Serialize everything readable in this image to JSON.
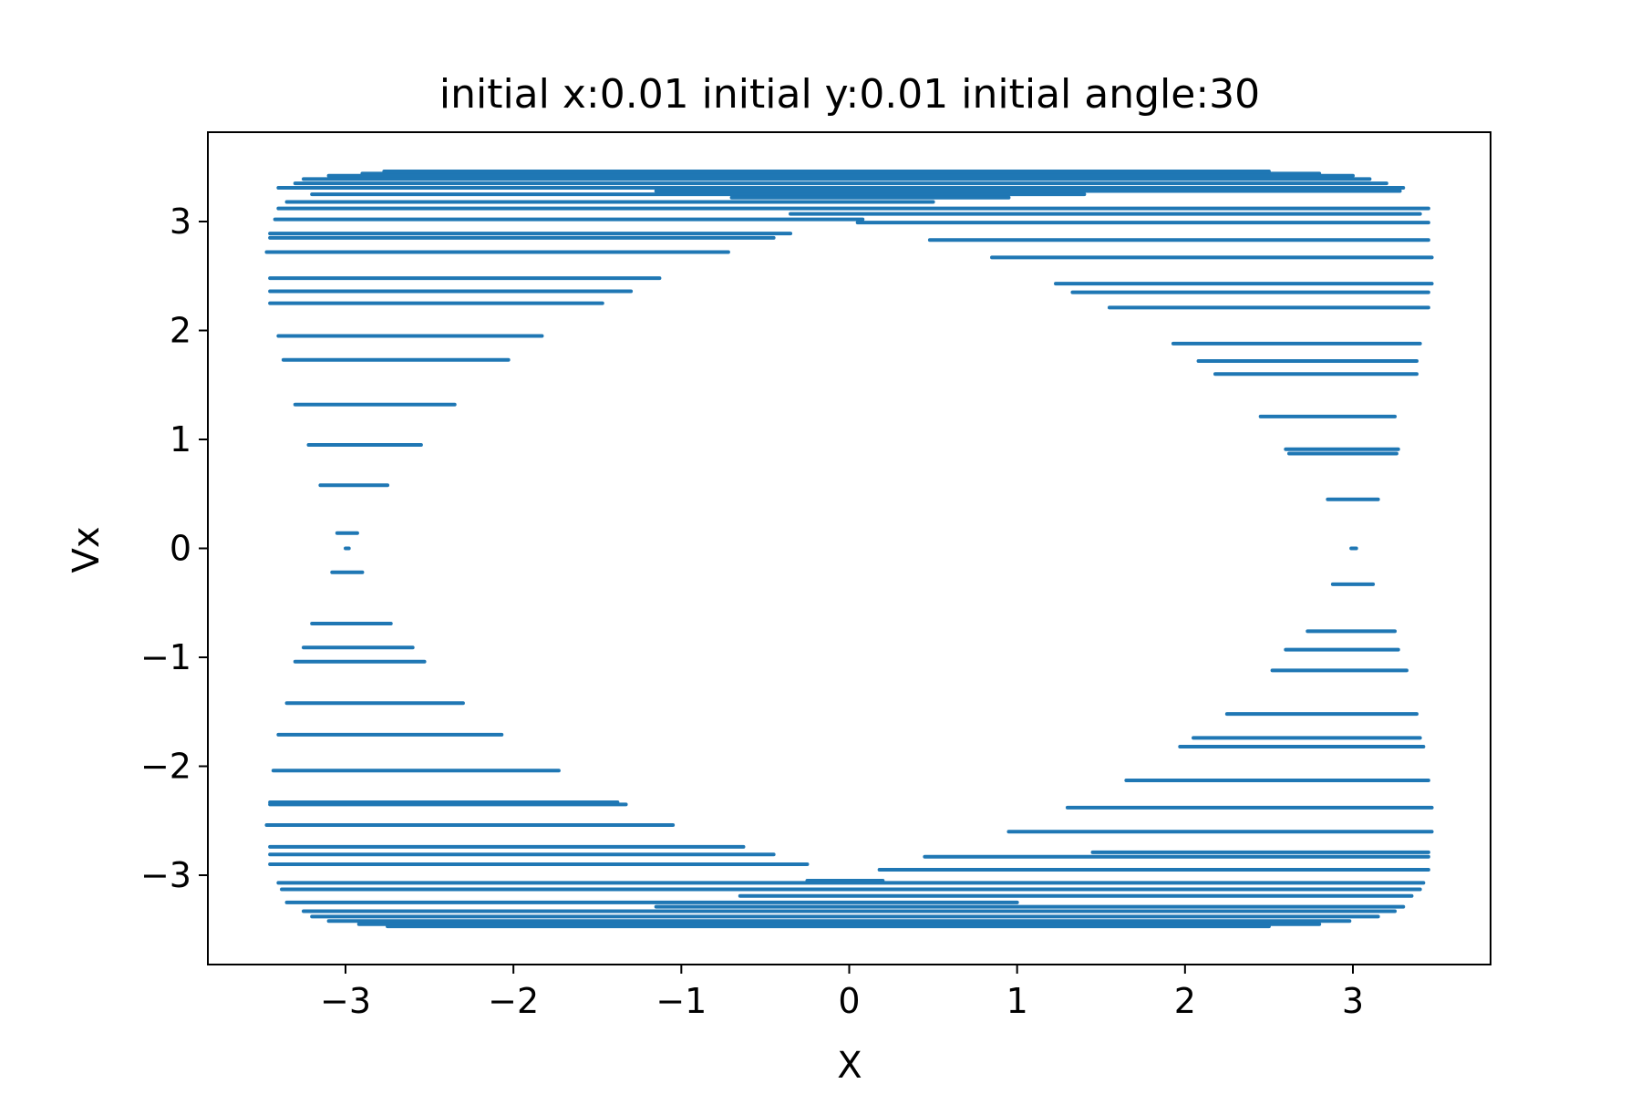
{
  "chart_data": {
    "type": "scatter",
    "title": "initial x:0.01  initial y:0.01 initial angle:30",
    "xlabel": "X",
    "ylabel": "Vx",
    "xlim": [
      -3.82,
      3.82
    ],
    "ylim": [
      -3.82,
      3.82
    ],
    "xticks": [
      -3,
      -2,
      -1,
      0,
      1,
      2,
      3
    ],
    "yticks": [
      -3,
      -2,
      -1,
      0,
      1,
      2,
      3
    ],
    "xtick_labels": [
      "−3",
      "−2",
      "−1",
      "0",
      "1",
      "2",
      "3"
    ],
    "ytick_labels": [
      "−3",
      "−2",
      "−1",
      "0",
      "1",
      "2",
      "3"
    ],
    "grid": false,
    "series": [
      {
        "color": "#1f77b4",
        "segments": [
          {
            "vx": 3.46,
            "x": [
              -2.77,
              2.5
            ]
          },
          {
            "vx": 3.44,
            "x": [
              -2.9,
              2.8
            ]
          },
          {
            "vx": 3.42,
            "x": [
              -3.1,
              3.0
            ]
          },
          {
            "vx": 3.39,
            "x": [
              -3.25,
              3.1
            ]
          },
          {
            "vx": 3.35,
            "x": [
              -3.3,
              3.2
            ]
          },
          {
            "vx": 3.31,
            "x": [
              -3.4,
              3.3
            ]
          },
          {
            "vx": 3.28,
            "x": [
              -1.15,
              3.28
            ]
          },
          {
            "vx": 3.25,
            "x": [
              -3.2,
              1.4
            ]
          },
          {
            "vx": 3.22,
            "x": [
              -0.7,
              0.95
            ]
          },
          {
            "vx": 3.18,
            "x": [
              -3.35,
              0.5
            ]
          },
          {
            "vx": 3.12,
            "x": [
              -3.4,
              3.45
            ]
          },
          {
            "vx": 3.07,
            "x": [
              -0.35,
              3.4
            ]
          },
          {
            "vx": 3.02,
            "x": [
              -3.42,
              0.08
            ]
          },
          {
            "vx": 2.99,
            "x": [
              0.05,
              3.45
            ]
          },
          {
            "vx": 2.89,
            "x": [
              -3.45,
              -0.35
            ]
          },
          {
            "vx": 2.85,
            "x": [
              -3.45,
              -0.45
            ]
          },
          {
            "vx": 2.83,
            "x": [
              0.48,
              3.45
            ]
          },
          {
            "vx": 2.72,
            "x": [
              -3.47,
              -0.72
            ]
          },
          {
            "vx": 2.67,
            "x": [
              0.85,
              3.47
            ]
          },
          {
            "vx": 2.48,
            "x": [
              -3.45,
              -1.13
            ]
          },
          {
            "vx": 2.43,
            "x": [
              1.23,
              3.47
            ]
          },
          {
            "vx": 2.36,
            "x": [
              -3.45,
              -1.3
            ]
          },
          {
            "vx": 2.35,
            "x": [
              1.33,
              3.45
            ]
          },
          {
            "vx": 2.25,
            "x": [
              -3.45,
              -1.47
            ]
          },
          {
            "vx": 2.21,
            "x": [
              1.55,
              3.45
            ]
          },
          {
            "vx": 1.95,
            "x": [
              -3.4,
              -1.83
            ]
          },
          {
            "vx": 1.88,
            "x": [
              1.93,
              3.4
            ]
          },
          {
            "vx": 1.73,
            "x": [
              -3.37,
              -2.03
            ]
          },
          {
            "vx": 1.72,
            "x": [
              2.08,
              3.38
            ]
          },
          {
            "vx": 1.6,
            "x": [
              2.18,
              3.38
            ]
          },
          {
            "vx": 1.32,
            "x": [
              -3.3,
              -2.35
            ]
          },
          {
            "vx": 1.21,
            "x": [
              2.45,
              3.25
            ]
          },
          {
            "vx": 0.95,
            "x": [
              -3.22,
              -2.55
            ]
          },
          {
            "vx": 0.91,
            "x": [
              2.6,
              3.27
            ]
          },
          {
            "vx": 0.87,
            "x": [
              2.62,
              3.26
            ]
          },
          {
            "vx": 0.58,
            "x": [
              -3.15,
              -2.75
            ]
          },
          {
            "vx": 0.45,
            "x": [
              2.85,
              3.15
            ]
          },
          {
            "vx": 0.14,
            "x": [
              -3.05,
              -2.93
            ]
          },
          {
            "vx": 0.0,
            "x": [
              -3.0,
              -2.98
            ]
          },
          {
            "vx": 0.0,
            "x": [
              2.99,
              3.02
            ]
          },
          {
            "vx": -0.22,
            "x": [
              -3.08,
              -2.9
            ]
          },
          {
            "vx": -0.33,
            "x": [
              2.88,
              3.12
            ]
          },
          {
            "vx": -0.69,
            "x": [
              -3.2,
              -2.73
            ]
          },
          {
            "vx": -0.76,
            "x": [
              2.73,
              3.25
            ]
          },
          {
            "vx": -0.91,
            "x": [
              -3.25,
              -2.6
            ]
          },
          {
            "vx": -0.93,
            "x": [
              2.6,
              3.27
            ]
          },
          {
            "vx": -1.04,
            "x": [
              -3.3,
              -2.53
            ]
          },
          {
            "vx": -1.12,
            "x": [
              2.52,
              3.32
            ]
          },
          {
            "vx": -1.42,
            "x": [
              -3.35,
              -2.3
            ]
          },
          {
            "vx": -1.52,
            "x": [
              2.25,
              3.38
            ]
          },
          {
            "vx": -1.71,
            "x": [
              -3.4,
              -2.07
            ]
          },
          {
            "vx": -1.74,
            "x": [
              2.05,
              3.4
            ]
          },
          {
            "vx": -1.82,
            "x": [
              1.97,
              3.42
            ]
          },
          {
            "vx": -2.04,
            "x": [
              -3.43,
              -1.73
            ]
          },
          {
            "vx": -2.13,
            "x": [
              1.65,
              3.45
            ]
          },
          {
            "vx": -2.33,
            "x": [
              -3.45,
              -1.38
            ]
          },
          {
            "vx": -2.35,
            "x": [
              -3.45,
              -1.33
            ]
          },
          {
            "vx": -2.38,
            "x": [
              1.3,
              3.47
            ]
          },
          {
            "vx": -2.54,
            "x": [
              -3.47,
              -1.05
            ]
          },
          {
            "vx": -2.6,
            "x": [
              0.95,
              3.47
            ]
          },
          {
            "vx": -2.74,
            "x": [
              -3.45,
              -0.63
            ]
          },
          {
            "vx": -2.79,
            "x": [
              1.45,
              3.45
            ]
          },
          {
            "vx": -2.81,
            "x": [
              -3.45,
              -0.45
            ]
          },
          {
            "vx": -2.83,
            "x": [
              0.45,
              3.45
            ]
          },
          {
            "vx": -2.9,
            "x": [
              -3.45,
              -0.25
            ]
          },
          {
            "vx": -2.95,
            "x": [
              0.18,
              3.45
            ]
          },
          {
            "vx": -3.05,
            "x": [
              -0.25,
              0.2
            ]
          },
          {
            "vx": -3.07,
            "x": [
              -3.4,
              3.42
            ]
          },
          {
            "vx": -3.13,
            "x": [
              -3.38,
              3.4
            ]
          },
          {
            "vx": -3.19,
            "x": [
              -0.65,
              3.35
            ]
          },
          {
            "vx": -3.25,
            "x": [
              -3.35,
              1.0
            ]
          },
          {
            "vx": -3.29,
            "x": [
              -1.15,
              3.3
            ]
          },
          {
            "vx": -3.33,
            "x": [
              -3.25,
              3.25
            ]
          },
          {
            "vx": -3.38,
            "x": [
              -3.2,
              3.15
            ]
          },
          {
            "vx": -3.42,
            "x": [
              -3.1,
              2.98
            ]
          },
          {
            "vx": -3.45,
            "x": [
              -2.92,
              2.8
            ]
          },
          {
            "vx": -3.47,
            "x": [
              -2.75,
              2.5
            ]
          }
        ]
      }
    ]
  }
}
